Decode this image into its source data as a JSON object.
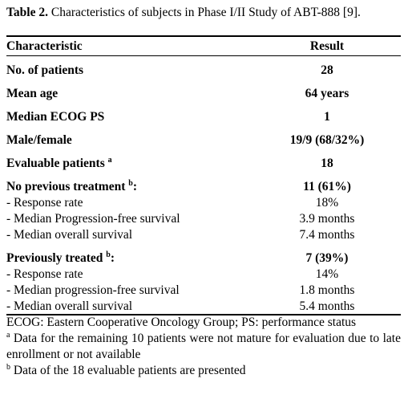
{
  "table": {
    "title": {
      "label": "Table 2.",
      "text": "Characteristics of subjects in Phase I/II Study of ABT-888 [9]."
    },
    "header": [
      "Characteristic",
      "Result"
    ],
    "rows": [
      {
        "label": "No. of patients",
        "result": "28"
      },
      {
        "label": "Mean age",
        "result": "64 years"
      },
      {
        "label": "Median ECOG PS",
        "result": "1"
      },
      {
        "label": "Male/female",
        "result": "19/9 (68/32%)"
      },
      {
        "label": "Evaluable patients",
        "note": "a",
        "result": "18"
      },
      {
        "label": "No previous treatment",
        "note": "b",
        "colon": ":",
        "result": "11 (61%)",
        "items": [
          {
            "label": "- Response rate",
            "result": "18%"
          },
          {
            "label": "- Median Progression-free survival",
            "result": "3.9 months"
          },
          {
            "label": "- Median overall survival",
            "result": "7.4 months"
          }
        ]
      },
      {
        "label": "Previously treated",
        "note": "b",
        "colon": ":",
        "result": "7 (39%)",
        "items": [
          {
            "label": "- Response rate",
            "result": "14%"
          },
          {
            "label": "- Median progression-free survival",
            "result": "1.8 months"
          },
          {
            "label": "- Median overall survival",
            "result": "5.4 months"
          }
        ]
      }
    ],
    "footnotes": [
      {
        "text": "ECOG: Eastern Cooperative Oncology Group; PS: performance status"
      },
      {
        "mark": "a",
        "text": "Data for the remaining 10 patients were not mature for evaluation due to late enrollment or not available"
      },
      {
        "mark": "b",
        "text": "Data of the 18 evaluable patients are presented"
      }
    ]
  }
}
